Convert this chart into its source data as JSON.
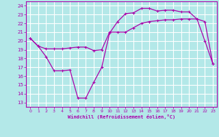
{
  "xlabel": "Windchill (Refroidissement éolien,°C)",
  "background_color": "#b3e8e8",
  "grid_color": "#ffffff",
  "line_color": "#aa00aa",
  "x_ticks": [
    0,
    1,
    2,
    3,
    4,
    5,
    6,
    7,
    8,
    9,
    10,
    11,
    12,
    13,
    14,
    15,
    16,
    17,
    18,
    19,
    20,
    21,
    22,
    23
  ],
  "y_ticks": [
    13,
    14,
    15,
    16,
    17,
    18,
    19,
    20,
    21,
    22,
    23,
    24
  ],
  "ylim": [
    12.5,
    24.5
  ],
  "xlim": [
    -0.5,
    23.5
  ],
  "line1_x": [
    0,
    1,
    2,
    3,
    4,
    5,
    6,
    7,
    8,
    9,
    10,
    11,
    12,
    13,
    14,
    15,
    16,
    17,
    18,
    19,
    20,
    21,
    22,
    23
  ],
  "line1_y": [
    20.3,
    19.4,
    19.1,
    19.1,
    19.1,
    19.2,
    19.3,
    19.3,
    18.9,
    19.0,
    21.0,
    21.0,
    21.0,
    21.5,
    22.0,
    22.2,
    22.3,
    22.4,
    22.4,
    22.5,
    22.5,
    22.5,
    22.2,
    17.4
  ],
  "line2_x": [
    0,
    1,
    2,
    3,
    4,
    5,
    6,
    7,
    8,
    9,
    10,
    11,
    12,
    13,
    14,
    15,
    16,
    17,
    18,
    19,
    20,
    21,
    22,
    23
  ],
  "line2_y": [
    20.3,
    19.4,
    18.2,
    16.6,
    16.6,
    16.7,
    13.5,
    13.5,
    15.3,
    17.0,
    20.9,
    22.2,
    23.1,
    23.2,
    23.7,
    23.7,
    23.4,
    23.5,
    23.5,
    23.3,
    23.3,
    22.5,
    20.0,
    17.4
  ]
}
